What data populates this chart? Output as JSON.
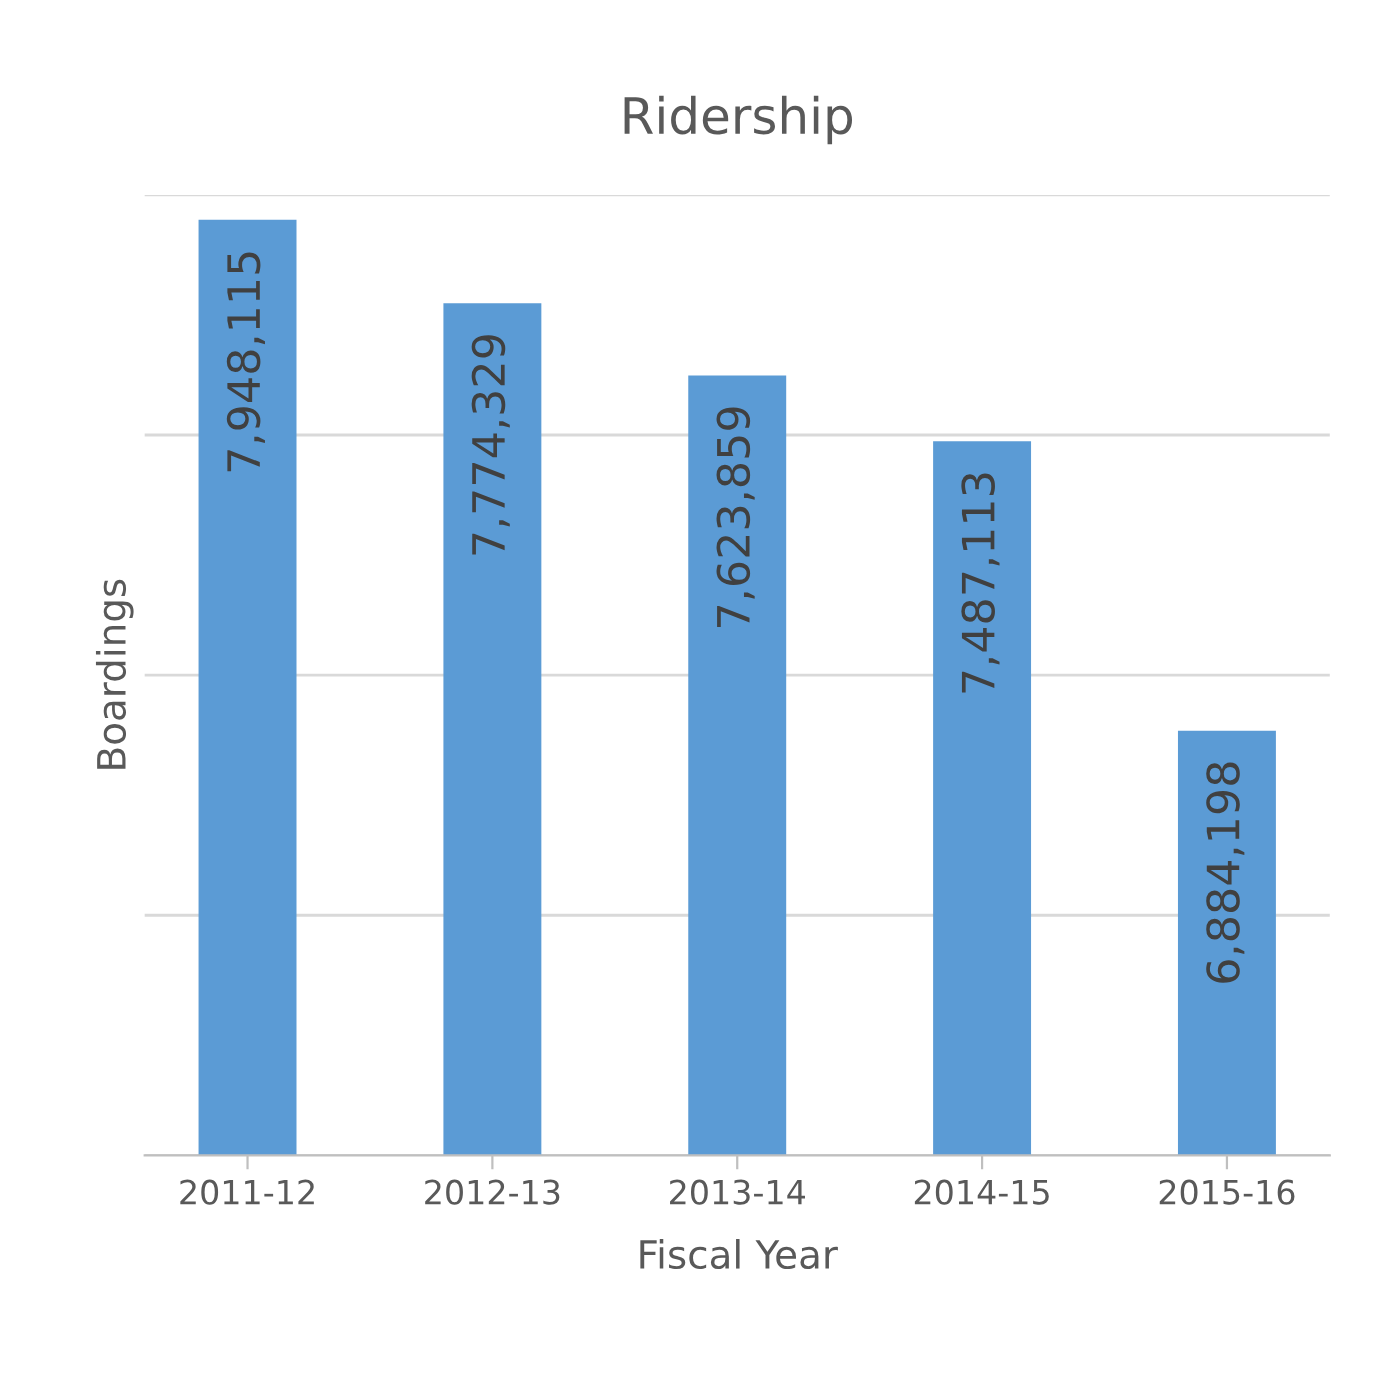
{
  "chart_data": {
    "type": "bar",
    "title": "Ridership",
    "xlabel": "Fiscal Year",
    "ylabel": "Boardings",
    "categories": [
      "2011-12",
      "2012-13",
      "2013-14",
      "2014-15",
      "2015-16"
    ],
    "values": [
      7948115,
      7774329,
      7623859,
      7487113,
      6884198
    ],
    "value_labels": [
      "7,948,115",
      "7,774,329",
      "7,623,859",
      "7,487,113",
      "6,884,198"
    ],
    "color": "#5b9bd5",
    "ylim": [
      6000000,
      8000000
    ],
    "yticks": [
      {
        "value": 6000000,
        "label": null
      },
      {
        "value": 6500000,
        "label": null
      },
      {
        "value": 7000000,
        "label": null
      },
      {
        "value": 7500000,
        "label": null
      },
      {
        "value": 8000000,
        "label": null
      }
    ],
    "tick_labels": "x",
    "grid": "y",
    "legend": false
  }
}
